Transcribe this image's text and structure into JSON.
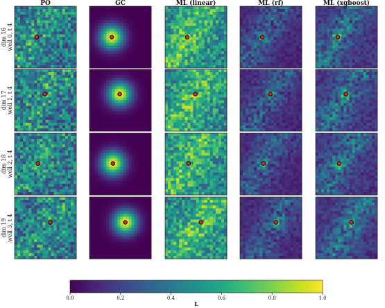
{
  "chart_data": {
    "type": "heatmap",
    "columns": [
      "PO",
      "GC",
      "ML (linear)",
      "ML (rf)",
      "ML (xgboost)"
    ],
    "rows": [
      {
        "label_line1": "dim 16",
        "label_line2": "well 0, t 4",
        "well": [
          0.36,
          0.5
        ]
      },
      {
        "label_line1": "dim 17",
        "label_line2": "well 1, t 4",
        "well": [
          0.49,
          0.4
        ]
      },
      {
        "label_line1": "dim 18",
        "label_line2": "well 2, t 4",
        "well": [
          0.38,
          0.49
        ]
      },
      {
        "label_line1": "dim 19",
        "label_line2": "well 3, t 4",
        "well": [
          0.58,
          0.41
        ]
      }
    ],
    "colorbar": {
      "label": "L",
      "range": [
        0.0,
        1.0
      ],
      "ticks": [
        "0.0",
        "0.2",
        "0.4",
        "0.6",
        "0.8",
        "1.0"
      ],
      "colormap": "viridis"
    },
    "well_marker_color": "#d62728"
  }
}
